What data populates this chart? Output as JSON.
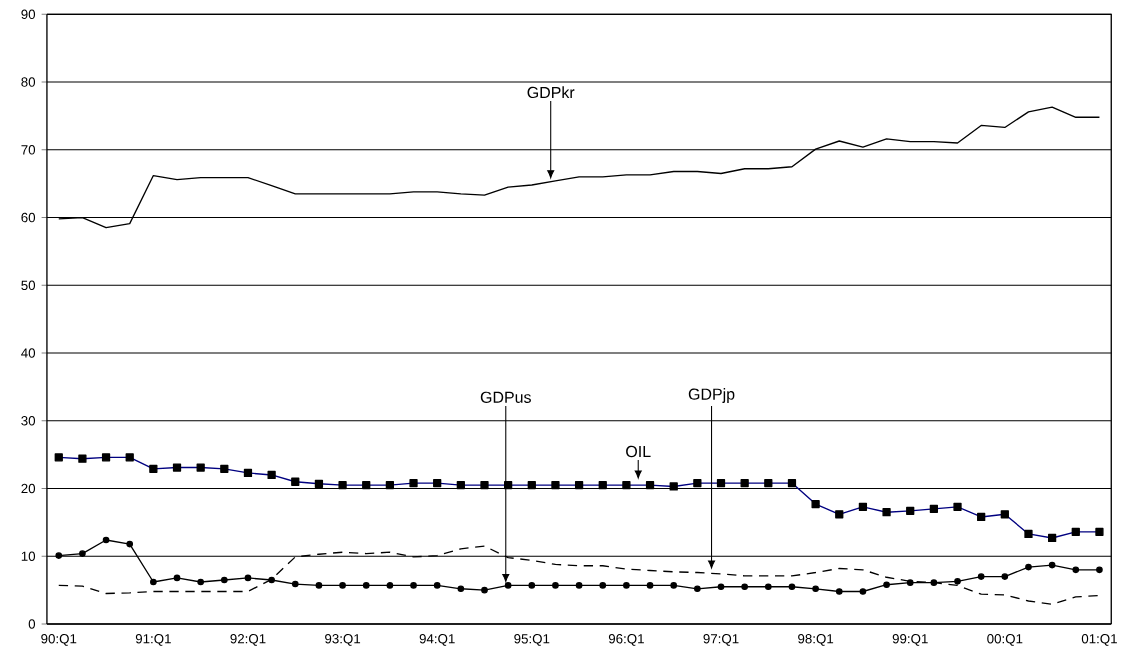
{
  "chart_data": {
    "type": "line",
    "categories": [
      "90:Q1",
      null,
      null,
      null,
      "91:Q1",
      null,
      null,
      null,
      "92:Q1",
      null,
      null,
      null,
      "93:Q1",
      null,
      null,
      null,
      "94:Q1",
      null,
      null,
      null,
      "95:Q1",
      null,
      null,
      null,
      "96:Q1",
      null,
      null,
      null,
      "97:Q1",
      null,
      null,
      null,
      "98:Q1",
      null,
      null,
      null,
      "99:Q1",
      null,
      null,
      null,
      "00:Q1",
      null,
      null,
      null,
      "01:Q1"
    ],
    "series": [
      {
        "name": "GDPkr",
        "color": "#000000",
        "marker": "none",
        "line_style": "solid",
        "values": [
          59.8,
          60.0,
          58.5,
          59.1,
          66.2,
          65.6,
          65.9,
          65.9,
          65.9,
          64.7,
          63.5,
          63.5,
          63.5,
          63.5,
          63.5,
          63.8,
          63.8,
          63.5,
          63.3,
          64.5,
          64.8,
          65.4,
          66.0,
          66.0,
          66.3,
          66.3,
          66.8,
          66.8,
          66.5,
          67.2,
          67.2,
          67.5,
          70.1,
          71.3,
          70.4,
          71.6,
          71.2,
          71.2,
          71.0,
          73.6,
          73.3,
          75.6,
          76.3,
          74.8,
          74.8
        ]
      },
      {
        "name": "OIL",
        "color": "#000080",
        "marker": "square",
        "line_style": "solid",
        "values": [
          24.6,
          24.4,
          24.6,
          24.6,
          22.9,
          23.1,
          23.1,
          22.9,
          22.3,
          22.0,
          21.0,
          20.7,
          20.5,
          20.5,
          20.5,
          20.8,
          20.8,
          20.5,
          20.5,
          20.5,
          20.5,
          20.5,
          20.5,
          20.5,
          20.5,
          20.5,
          20.3,
          20.8,
          20.8,
          20.8,
          20.8,
          20.8,
          17.7,
          16.2,
          17.3,
          16.5,
          16.7,
          17.0,
          17.3,
          15.8,
          16.2,
          13.3,
          12.7,
          13.6,
          13.6
        ]
      },
      {
        "name": "GDPus",
        "color": "#000000",
        "marker": "circle",
        "line_style": "solid",
        "values": [
          10.1,
          10.4,
          12.4,
          11.8,
          6.2,
          6.8,
          6.2,
          6.5,
          6.8,
          6.5,
          5.9,
          5.7,
          5.7,
          5.7,
          5.7,
          5.7,
          5.7,
          5.2,
          5.0,
          5.7,
          5.7,
          5.7,
          5.7,
          5.7,
          5.7,
          5.7,
          5.7,
          5.2,
          5.5,
          5.5,
          5.5,
          5.5,
          5.2,
          4.8,
          4.8,
          5.8,
          6.1,
          6.1,
          6.3,
          7.0,
          7.0,
          8.4,
          8.7,
          8.0,
          8.0
        ]
      },
      {
        "name": "GDPjp",
        "color": "#000000",
        "marker": "none",
        "line_style": "dashed",
        "values": [
          5.7,
          5.6,
          4.5,
          4.6,
          4.8,
          4.8,
          4.8,
          4.8,
          4.8,
          6.6,
          9.9,
          10.3,
          10.6,
          10.4,
          10.6,
          9.9,
          10.1,
          11.1,
          11.5,
          9.8,
          9.4,
          8.8,
          8.6,
          8.6,
          8.1,
          7.9,
          7.7,
          7.6,
          7.4,
          7.1,
          7.1,
          7.1,
          7.6,
          8.2,
          8.0,
          6.9,
          6.3,
          6.1,
          5.7,
          4.4,
          4.3,
          3.4,
          2.9,
          4.0,
          4.2
        ]
      }
    ],
    "ylim": [
      0,
      90
    ],
    "yticks": [
      0,
      10,
      20,
      30,
      40,
      50,
      60,
      70,
      80,
      90
    ],
    "grid": "y"
  }
}
